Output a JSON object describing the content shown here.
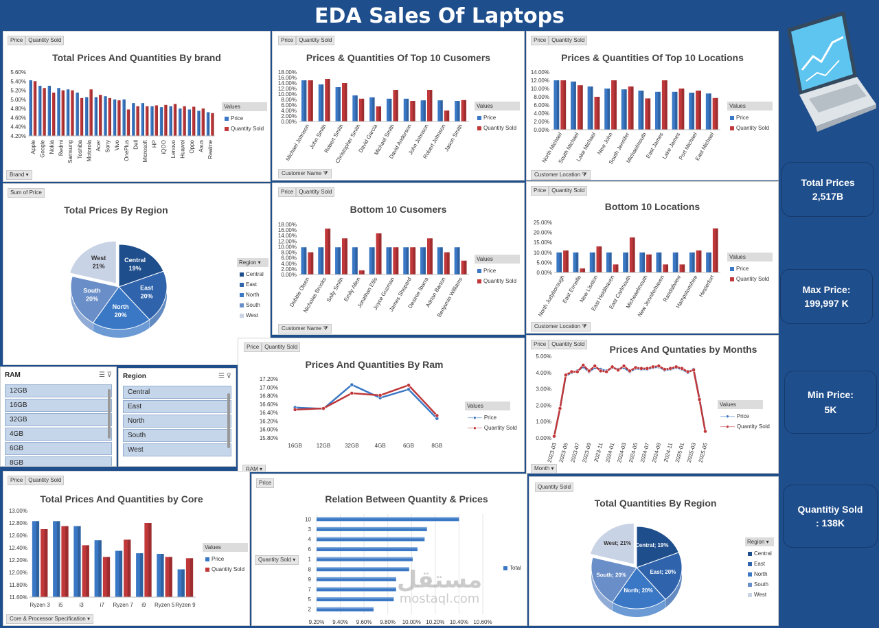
{
  "title": "EDA Sales Of Laptops",
  "colors": {
    "price": "#3a78c5",
    "qty": "#c0383a",
    "bg": "#1f4e8c"
  },
  "filter_price": "Price",
  "filter_qty": "Quantity  Sold",
  "filter_sum": "Sum of Price",
  "filter_qty_only": "Quantity  Sold",
  "values_label": "Values",
  "legend_price": "Price",
  "legend_qty": "Quantity Sold",
  "legend_total": "Total",
  "region_label": "Region",
  "brand": {
    "title": "Total Prices And Quantities By brand",
    "axis_button": "Brand",
    "chart_data": {
      "type": "bar",
      "categories": [
        "Apple",
        "Google",
        "Nokia",
        "Redmi",
        "Samsung",
        "Toshiba",
        "Motorola",
        "Acer",
        "Sony",
        "Vivo",
        "OnePlus",
        "Dell",
        "Microsoft",
        "HP",
        "iQOO",
        "Lenovo",
        "Huawei",
        "Oppo",
        "Asus",
        "Realme"
      ],
      "series": [
        {
          "name": "Price",
          "values": [
            5.42,
            5.3,
            5.3,
            5.25,
            5.22,
            5.15,
            5.05,
            5.05,
            5.07,
            5.0,
            5.0,
            4.92,
            4.92,
            4.85,
            4.83,
            4.85,
            4.8,
            4.78,
            4.75,
            4.72
          ]
        },
        {
          "name": "Quantity Sold",
          "values": [
            5.4,
            5.25,
            5.15,
            5.2,
            5.2,
            5.03,
            5.22,
            5.1,
            5.03,
            4.98,
            4.78,
            4.85,
            4.85,
            4.87,
            4.88,
            4.9,
            4.85,
            4.84,
            4.8,
            4.7
          ]
        }
      ],
      "yticks": [
        "4.20%",
        "4.40%",
        "4.60%",
        "4.80%",
        "5.00%",
        "5.20%",
        "5.40%",
        "5.60%"
      ],
      "ylim": [
        4.2,
        5.6
      ]
    }
  },
  "customers": {
    "title": "Prices & Quantities Of Top 10 Cusomers",
    "axis_button": "Customer Name",
    "chart_data": {
      "type": "bar",
      "categories": [
        "Michael Johnson",
        "John Smith",
        "Robert Smith",
        "Christopher Smith",
        "David Garcia",
        "Michael Smith",
        "David Anderson",
        "John Johnson",
        "Robert Johnson",
        "Jason Smith"
      ],
      "series": [
        {
          "name": "Price",
          "values": [
            15,
            13.5,
            12.5,
            9.5,
            8.8,
            8.3,
            8.3,
            7.7,
            7.7,
            7.5
          ]
        },
        {
          "name": "Quantity Sold",
          "values": [
            15,
            15.5,
            14,
            8.3,
            5.5,
            11.5,
            7.5,
            11.5,
            4,
            7.8
          ]
        }
      ],
      "yticks": [
        "0.00%",
        "2.00%",
        "4.00%",
        "6.00%",
        "8.00%",
        "10.00%",
        "12.00%",
        "14.00%",
        "16.00%",
        "18.00%"
      ],
      "ylim": [
        0,
        18
      ]
    }
  },
  "locations": {
    "title": "Prices & Quantities Of Top 10 Locations",
    "axis_button": "Customer Location",
    "chart_data": {
      "type": "bar",
      "categories": [
        "North Michael",
        "South Michael",
        "Lake Michael",
        "New John",
        "South Jennifer",
        "Michaelmouth",
        "East James",
        "Lake James",
        "Port Michael",
        "East Michael"
      ],
      "series": [
        {
          "name": "Price",
          "values": [
            12,
            11.7,
            10.5,
            10,
            9.8,
            9.5,
            9.2,
            9.2,
            9,
            8.8
          ]
        },
        {
          "name": "Quantity Sold",
          "values": [
            12,
            10.8,
            8,
            12,
            10.5,
            7.6,
            12,
            10,
            9.5,
            7.7
          ]
        }
      ],
      "yticks": [
        "0.00%",
        "2.00%",
        "4.00%",
        "6.00%",
        "8.00%",
        "10.00%",
        "12.00%",
        "14.00%"
      ],
      "ylim": [
        0,
        14
      ]
    }
  },
  "region_pie": {
    "title": "Total Prices By Region",
    "chart_data": {
      "type": "pie",
      "labels": [
        "Central",
        "East",
        "North",
        "South",
        "West"
      ],
      "values": [
        19,
        20,
        20,
        20,
        21
      ],
      "display": [
        "Central\n19%",
        "East\n20%",
        "North\n20%",
        "South\n20%",
        "West\n21%"
      ]
    }
  },
  "bottom_customers": {
    "title": "Bottom 10 Cusomers",
    "axis_button": "Customer Name",
    "chart_data": {
      "type": "bar",
      "categories": [
        "Debbie Olsen",
        "Nicholas Brooks",
        "Sally Smith",
        "Emily Allen",
        "Jonathan Ellis",
        "Joyce Guzman",
        "James Shepard",
        "Desiree Ibarra",
        "Adrian Barton",
        "Benjamin Williams"
      ],
      "series": [
        {
          "name": "Price",
          "values": [
            9.8,
            9.8,
            9.8,
            9.8,
            9.8,
            9.8,
            9.8,
            9.8,
            9.8,
            9.8
          ]
        },
        {
          "name": "Quantity Sold",
          "values": [
            8,
            16.5,
            13,
            1.5,
            14.8,
            9.8,
            9.8,
            13,
            8,
            5
          ]
        }
      ],
      "yticks": [
        "0.00%",
        "2.00%",
        "4.00%",
        "6.00%",
        "8.00%",
        "10.00%",
        "12.00%",
        "14.00%",
        "16.00%",
        "18.00%"
      ],
      "ylim": [
        0,
        18
      ]
    }
  },
  "bottom_locations": {
    "title": "Bottom 10 Locations",
    "axis_button": "Customer Location",
    "chart_data": {
      "type": "bar",
      "categories": [
        "North Judyborough",
        "East Ermelle",
        "New Lisaton",
        "East Heidihaven",
        "East Carlmouth",
        "Micheaelmouth",
        "New Jenniferhaven",
        "Randallview",
        "Hampstonshire",
        "Hesterfort"
      ],
      "series": [
        {
          "name": "Price",
          "values": [
            10,
            10,
            10,
            10,
            10,
            10,
            10,
            10,
            10,
            10
          ]
        },
        {
          "name": "Quantity Sold",
          "values": [
            11,
            2,
            13,
            4,
            17.5,
            9,
            4,
            4,
            11,
            22
          ]
        }
      ],
      "yticks": [
        "0.00%",
        "5.00%",
        "10.00%",
        "15.00%",
        "20.00%",
        "25.00%"
      ],
      "ylim": [
        0,
        25
      ]
    }
  },
  "ram": {
    "title": "Prices And Quantities By Ram",
    "axis_button": "RAM",
    "chart_data": {
      "type": "line",
      "categories": [
        "16GB",
        "12GB",
        "32GB",
        "4GB",
        "6GB",
        "8GB"
      ],
      "series": [
        {
          "name": "Price",
          "values": [
            16.52,
            16.49,
            17.06,
            16.75,
            16.95,
            16.26
          ]
        },
        {
          "name": "Quantity Sold",
          "values": [
            16.47,
            16.5,
            16.86,
            16.81,
            17.05,
            16.33
          ]
        }
      ],
      "yticks": [
        "15.80%",
        "16.00%",
        "16.20%",
        "16.40%",
        "16.60%",
        "16.80%",
        "17.00%",
        "17.20%"
      ],
      "ylim": [
        15.8,
        17.2
      ]
    }
  },
  "months": {
    "title": "Prices And Quntaties by Months",
    "axis_button": "Month",
    "chart_data": {
      "type": "line",
      "categories": [
        "2023-03",
        "2023-04",
        "2023-05",
        "2023-06",
        "2023-07",
        "2023-08",
        "2023-09",
        "2023-10",
        "2023-11",
        "2023-12",
        "2024-01",
        "2024-02",
        "2024-03",
        "2024-04",
        "2024-05",
        "2024-06",
        "2024-07",
        "2024-08",
        "2024-09",
        "2024-10",
        "2024-11",
        "2024-12",
        "2025-01",
        "2025-02",
        "2025-03",
        "2025-04",
        "2025-05"
      ],
      "tick_labels": [
        "2023-03",
        "2023-05",
        "2023-07",
        "2023-09",
        "2023-11",
        "2024-01",
        "2024-03",
        "2024-05",
        "2024-07",
        "2024-09",
        "2024-11",
        "2025-01",
        "2025-03",
        "2025-05"
      ],
      "series": [
        {
          "name": "Price",
          "values": [
            0.1,
            1.8,
            3.8,
            4.0,
            4.1,
            4.35,
            4.05,
            4.3,
            4.2,
            4.1,
            4.3,
            4.2,
            4.3,
            4.05,
            4.25,
            4.2,
            4.2,
            4.3,
            4.35,
            4.15,
            4.2,
            4.3,
            4.2,
            4.0,
            4.2,
            2.4,
            0.4
          ]
        },
        {
          "name": "Quantity Sold",
          "values": [
            0.1,
            1.8,
            3.85,
            4.05,
            4.05,
            4.45,
            4.1,
            4.4,
            4.1,
            4.05,
            4.35,
            4.15,
            4.4,
            4.1,
            4.3,
            4.25,
            4.25,
            4.35,
            4.4,
            4.2,
            4.25,
            4.35,
            4.25,
            4.05,
            4.15,
            2.35,
            0.4
          ]
        }
      ],
      "yticks": [
        "0.00%",
        "1.00%",
        "2.00%",
        "3.00%",
        "4.00%",
        "5.00%"
      ],
      "ylim": [
        0,
        5
      ]
    }
  },
  "core": {
    "title": "Total Prices And Quantities by Core",
    "axis_button": "Core & Processor Specification",
    "chart_data": {
      "type": "bar",
      "categories": [
        "Ryzen 3",
        "i5",
        "i3",
        "i7",
        "Ryzen 7",
        "i9",
        "Ryzen 5",
        "Ryzen 9"
      ],
      "series": [
        {
          "name": "Price",
          "values": [
            12.83,
            12.83,
            12.75,
            12.52,
            12.35,
            12.31,
            12.3,
            12.05
          ]
        },
        {
          "name": "Quantity Sold",
          "values": [
            12.7,
            12.75,
            12.44,
            12.25,
            12.53,
            12.8,
            12.25,
            12.23
          ]
        }
      ],
      "yticks": [
        "11.60%",
        "11.80%",
        "12.00%",
        "12.20%",
        "12.40%",
        "12.60%",
        "12.80%",
        "13.00%"
      ],
      "ylim": [
        11.6,
        13.0
      ]
    }
  },
  "relation": {
    "title": "Relation Between Quantity & Prices",
    "axis_button": "Quantity  Sold",
    "chart_data": {
      "type": "bar",
      "orientation": "horizontal",
      "categories": [
        "10",
        "3",
        "4",
        "6",
        "1",
        "8",
        "9",
        "7",
        "5",
        "2"
      ],
      "series": [
        {
          "name": "Total",
          "values": [
            10.4,
            10.13,
            10.11,
            10.05,
            10.01,
            9.98,
            9.87,
            9.87,
            9.85,
            9.68
          ]
        }
      ],
      "xticks": [
        "9.20%",
        "9.40%",
        "9.60%",
        "9.80%",
        "10.00%",
        "10.20%",
        "10.40%",
        "10.60%"
      ],
      "xlim": [
        9.2,
        10.6
      ]
    }
  },
  "qty_region": {
    "title": "Total Quantities By Region",
    "chart_data": {
      "type": "pie",
      "labels": [
        "Central",
        "East",
        "North",
        "South",
        "West"
      ],
      "values": [
        19,
        20,
        20,
        20,
        21
      ],
      "display": [
        "Central; 19%",
        "East; 20%",
        "North; 20%",
        "South; 20%",
        "West; 21%"
      ]
    }
  },
  "slicer_ram": {
    "title": "RAM",
    "items": [
      "12GB",
      "16GB",
      "32GB",
      "4GB",
      "6GB",
      "8GB"
    ]
  },
  "slicer_region": {
    "title": "Region",
    "items": [
      "Central",
      "East",
      "North",
      "South",
      "West"
    ]
  },
  "kpis": [
    {
      "label": "Total Prices",
      "value": "2,517B"
    },
    {
      "label": "Max Price:",
      "value": "199,997 K"
    },
    {
      "label": "Min Price:",
      "value": "5K"
    },
    {
      "label": "Quantitiy Sold",
      "value": ": 138K"
    }
  ],
  "watermark": {
    "arabic": "مستقل",
    "latin": "mostaql.com"
  }
}
